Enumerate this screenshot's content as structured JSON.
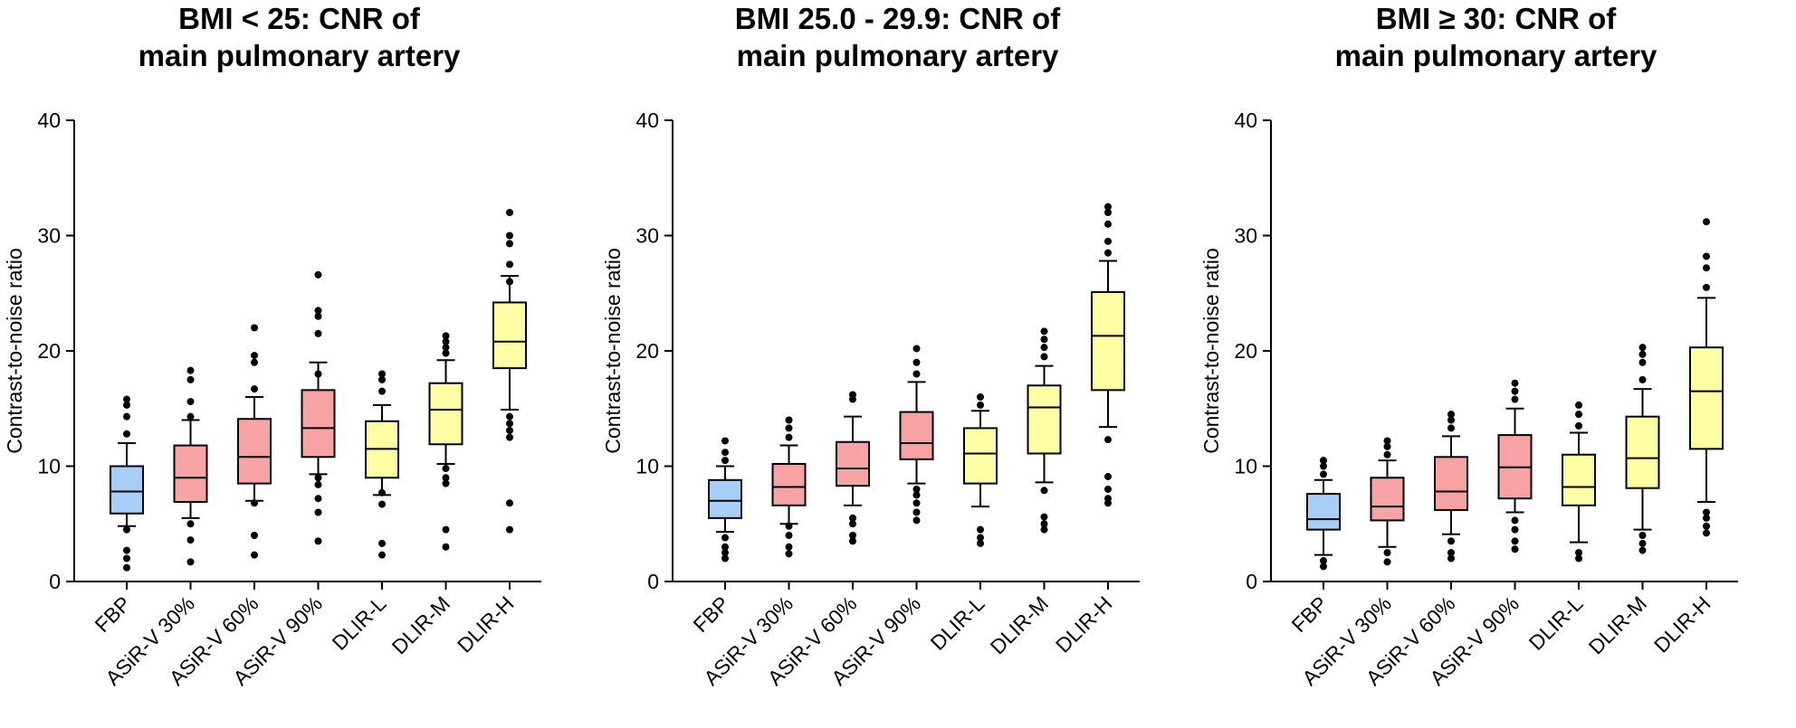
{
  "colors": {
    "FBP": "#a6cef6",
    "ASiR-V": "#f7a3a3",
    "DLIR": "#fdfda3",
    "stroke": "#000000"
  },
  "chart_data": [
    {
      "type": "box",
      "title_line1": "BMI < 25: CNR of",
      "title_line2": "main pulmonary artery",
      "ylabel": "Contrast-to-noise ratio",
      "ylim": [
        0,
        40
      ],
      "yticks": [
        0,
        10,
        20,
        30,
        40
      ],
      "categories": [
        "FBP",
        "ASiR-V 30%",
        "ASiR-V 60%",
        "ASiR-V 90%",
        "DLIR-L",
        "DLIR-M",
        "DLIR-H"
      ],
      "groups": [
        "FBP",
        "ASiR-V",
        "ASiR-V",
        "ASiR-V",
        "DLIR",
        "DLIR",
        "DLIR"
      ],
      "boxes": [
        {
          "q1": 5.9,
          "median": 7.8,
          "q3": 10.0,
          "whisker_low": 4.8,
          "whisker_high": 12.0,
          "outliers": [
            1.2,
            2.0,
            2.7,
            4.5,
            12.8,
            14.3,
            15.3,
            15.8
          ]
        },
        {
          "q1": 6.9,
          "median": 9.0,
          "q3": 11.8,
          "whisker_low": 5.5,
          "whisker_high": 14.0,
          "outliers": [
            1.7,
            3.6,
            5.0,
            14.3,
            15.6,
            17.5,
            18.3
          ]
        },
        {
          "q1": 8.5,
          "median": 10.8,
          "q3": 14.1,
          "whisker_low": 7.0,
          "whisker_high": 16.0,
          "outliers": [
            2.3,
            4.0,
            6.8,
            16.7,
            19.0,
            19.6,
            22.0
          ]
        },
        {
          "q1": 10.8,
          "median": 13.3,
          "q3": 16.6,
          "whisker_low": 9.3,
          "whisker_high": 19.0,
          "outliers": [
            3.5,
            6.0,
            7.2,
            8.4,
            9.0,
            18.0,
            21.5,
            23.0,
            23.5,
            26.6
          ]
        },
        {
          "q1": 9.0,
          "median": 11.5,
          "q3": 13.9,
          "whisker_low": 7.5,
          "whisker_high": 15.3,
          "outliers": [
            2.3,
            3.3,
            6.7,
            7.7,
            16.5,
            17.5,
            18.0
          ]
        },
        {
          "q1": 11.9,
          "median": 14.9,
          "q3": 17.2,
          "whisker_low": 10.2,
          "whisker_high": 19.2,
          "outliers": [
            3.0,
            4.5,
            8.5,
            9.0,
            9.8,
            19.8,
            20.3,
            20.8,
            21.3
          ]
        },
        {
          "q1": 18.5,
          "median": 20.8,
          "q3": 24.2,
          "whisker_low": 14.9,
          "whisker_high": 26.5,
          "outliers": [
            4.5,
            6.8,
            12.5,
            13.1,
            13.7,
            14.3,
            26.0,
            27.5,
            29.3,
            30.0,
            32.0
          ]
        }
      ]
    },
    {
      "type": "box",
      "title_line1": "BMI 25.0 - 29.9: CNR of",
      "title_line2": "main pulmonary artery",
      "ylabel": "Contrast-to-noise ratio",
      "ylim": [
        0,
        40
      ],
      "yticks": [
        0,
        10,
        20,
        30,
        40
      ],
      "categories": [
        "FBP",
        "ASiR-V 30%",
        "ASiR-V 60%",
        "ASiR-V 90%",
        "DLIR-L",
        "DLIR-M",
        "DLIR-H"
      ],
      "groups": [
        "FBP",
        "ASiR-V",
        "ASiR-V",
        "ASiR-V",
        "DLIR",
        "DLIR",
        "DLIR"
      ],
      "boxes": [
        {
          "q1": 5.5,
          "median": 7.0,
          "q3": 8.8,
          "whisker_low": 4.3,
          "whisker_high": 10.0,
          "outliers": [
            2.0,
            2.5,
            3.0,
            3.8,
            10.5,
            11.2,
            12.2
          ]
        },
        {
          "q1": 6.6,
          "median": 8.2,
          "q3": 10.2,
          "whisker_low": 5.0,
          "whisker_high": 11.8,
          "outliers": [
            2.4,
            3.0,
            4.0,
            4.8,
            12.5,
            13.3,
            14.0
          ]
        },
        {
          "q1": 8.3,
          "median": 9.8,
          "q3": 12.1,
          "whisker_low": 6.6,
          "whisker_high": 14.3,
          "outliers": [
            3.5,
            4.0,
            5.0,
            5.5,
            15.8,
            16.2
          ]
        },
        {
          "q1": 10.6,
          "median": 12.0,
          "q3": 14.7,
          "whisker_low": 8.5,
          "whisker_high": 17.3,
          "outliers": [
            5.3,
            6.0,
            6.8,
            7.5,
            8.0,
            18.0,
            19.0,
            20.2
          ]
        },
        {
          "q1": 8.5,
          "median": 11.1,
          "q3": 13.3,
          "whisker_low": 6.5,
          "whisker_high": 14.8,
          "outliers": [
            3.3,
            3.8,
            4.5,
            15.3,
            16.0
          ]
        },
        {
          "q1": 11.1,
          "median": 15.1,
          "q3": 17.0,
          "whisker_low": 8.6,
          "whisker_high": 18.7,
          "outliers": [
            4.5,
            5.0,
            5.6,
            7.9,
            19.5,
            20.3,
            21.0,
            21.7
          ]
        },
        {
          "q1": 16.6,
          "median": 21.3,
          "q3": 25.1,
          "whisker_low": 13.4,
          "whisker_high": 27.8,
          "outliers": [
            6.8,
            7.2,
            8.0,
            9.1,
            12.3,
            28.5,
            29.5,
            31.0,
            32.0,
            32.5
          ]
        }
      ]
    },
    {
      "type": "box",
      "title_line1": "BMI ≥ 30: CNR of",
      "title_line2": "main pulmonary artery",
      "ylabel": "Contrast-to-noise ratio",
      "ylim": [
        0,
        40
      ],
      "yticks": [
        0,
        10,
        20,
        30,
        40
      ],
      "categories": [
        "FBP",
        "ASiR-V 30%",
        "ASiR-V 60%",
        "ASiR-V 90%",
        "DLIR-L",
        "DLIR-M",
        "DLIR-H"
      ],
      "groups": [
        "FBP",
        "ASiR-V",
        "ASiR-V",
        "ASiR-V",
        "DLIR",
        "DLIR",
        "DLIR"
      ],
      "boxes": [
        {
          "q1": 4.5,
          "median": 5.4,
          "q3": 7.6,
          "whisker_low": 2.3,
          "whisker_high": 8.8,
          "outliers": [
            1.3,
            1.8,
            9.3,
            10.0,
            10.5
          ]
        },
        {
          "q1": 5.3,
          "median": 6.5,
          "q3": 9.0,
          "whisker_low": 3.0,
          "whisker_high": 10.5,
          "outliers": [
            1.7,
            2.5,
            11.0,
            11.7,
            12.2
          ]
        },
        {
          "q1": 6.2,
          "median": 7.8,
          "q3": 10.8,
          "whisker_low": 4.1,
          "whisker_high": 12.6,
          "outliers": [
            2.0,
            2.5,
            3.5,
            13.3,
            14.0,
            14.5
          ]
        },
        {
          "q1": 7.2,
          "median": 9.9,
          "q3": 12.7,
          "whisker_low": 6.0,
          "whisker_high": 15.0,
          "outliers": [
            2.8,
            3.5,
            4.5,
            5.3,
            15.8,
            16.5,
            17.2
          ]
        },
        {
          "q1": 6.6,
          "median": 8.2,
          "q3": 11.0,
          "whisker_low": 3.4,
          "whisker_high": 12.9,
          "outliers": [
            2.0,
            2.5,
            13.5,
            14.5,
            15.3
          ]
        },
        {
          "q1": 8.1,
          "median": 10.7,
          "q3": 14.3,
          "whisker_low": 4.5,
          "whisker_high": 16.7,
          "outliers": [
            2.7,
            3.3,
            4.0,
            17.5,
            19.0,
            19.7,
            20.3
          ]
        },
        {
          "q1": 11.5,
          "median": 16.5,
          "q3": 20.3,
          "whisker_low": 6.9,
          "whisker_high": 24.6,
          "outliers": [
            4.2,
            4.8,
            5.5,
            6.0,
            25.5,
            27.2,
            28.2,
            31.2
          ]
        }
      ]
    }
  ]
}
